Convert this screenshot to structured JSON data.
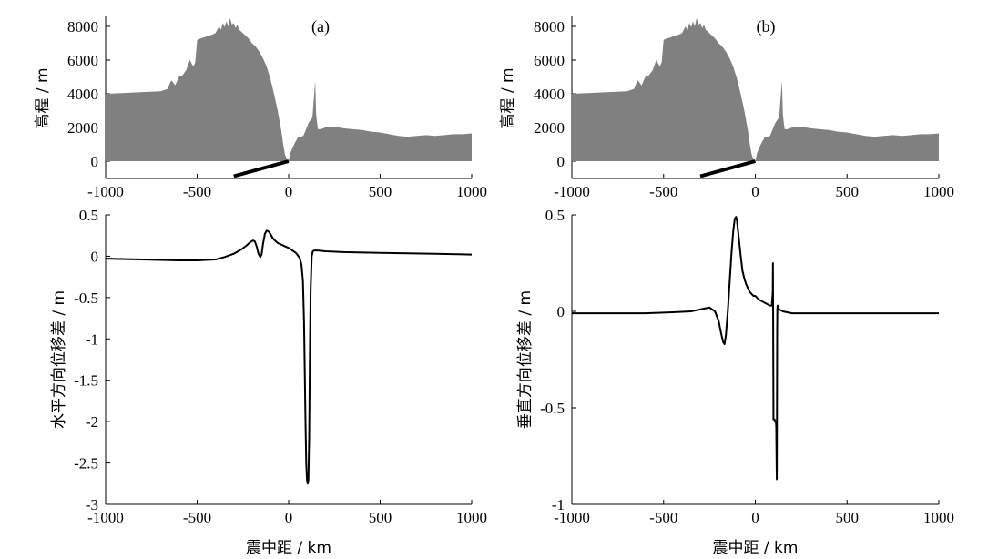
{
  "chart_data": [
    {
      "type": "area",
      "panel_label": "(a)",
      "ylabel": "高程 / m",
      "xlim": [
        -1000,
        1000
      ],
      "ylim": [
        -1000,
        8500
      ],
      "xticks": [
        -1000,
        -500,
        0,
        500,
        1000
      ],
      "yticks": [
        0,
        2000,
        4000,
        6000,
        8000
      ],
      "fill_color": "#808080",
      "grid": false,
      "series": [
        {
          "x": [
            -1000,
            -900,
            -800,
            -700,
            -660,
            -650,
            -640,
            -620,
            -600,
            -580,
            -560,
            -540,
            -520,
            -510,
            -500,
            -480,
            -460,
            -440,
            -420,
            -400,
            -380,
            -370,
            -360,
            -350,
            -340,
            -330,
            -320,
            -310,
            -300,
            -290,
            -280,
            -270,
            -260,
            -240,
            -220,
            -200,
            -180,
            -160,
            -140,
            -120,
            -100,
            -80,
            -60,
            -40,
            -30,
            -20,
            -10,
            0,
            10,
            30,
            50,
            80,
            110,
            130,
            145,
            150,
            155,
            160,
            175,
            200,
            250,
            300,
            350,
            400,
            450,
            500,
            550,
            600,
            650,
            700,
            750,
            800,
            850,
            900,
            950,
            1000
          ],
          "y": [
            4000,
            4050,
            4100,
            4150,
            4300,
            4600,
            4800,
            4500,
            5000,
            5100,
            5400,
            6000,
            5600,
            5900,
            7200,
            7300,
            7350,
            7450,
            7500,
            7600,
            8000,
            7800,
            8200,
            7950,
            8300,
            8000,
            8500,
            8100,
            8200,
            7900,
            8100,
            7800,
            7700,
            7500,
            7300,
            7000,
            6800,
            6500,
            6100,
            5600,
            4900,
            4000,
            3000,
            1800,
            1000,
            400,
            100,
            0,
            500,
            1000,
            1400,
            1500,
            2300,
            2600,
            4800,
            2800,
            2300,
            1900,
            1900,
            2000,
            2050,
            1950,
            1900,
            1850,
            1750,
            1700,
            1600,
            1500,
            1450,
            1500,
            1550,
            1500,
            1550,
            1600,
            1600,
            1650
          ]
        }
      ],
      "fault_trace": {
        "x": [
          -300,
          0
        ],
        "y": [
          -1000,
          0
        ]
      }
    },
    {
      "type": "area",
      "panel_label": "(b)",
      "ylabel": "高程 / m",
      "xlim": [
        -1000,
        1000
      ],
      "ylim": [
        -1000,
        8500
      ],
      "xticks": [
        -1000,
        -500,
        0,
        500,
        1000
      ],
      "yticks": [
        0,
        2000,
        4000,
        6000,
        8000
      ],
      "fill_color": "#808080",
      "grid": false,
      "series": [
        {
          "x": [
            -1000,
            -900,
            -800,
            -700,
            -660,
            -650,
            -640,
            -620,
            -600,
            -580,
            -560,
            -540,
            -520,
            -510,
            -500,
            -480,
            -460,
            -440,
            -420,
            -400,
            -380,
            -370,
            -360,
            -350,
            -340,
            -330,
            -320,
            -310,
            -300,
            -290,
            -280,
            -270,
            -260,
            -240,
            -220,
            -200,
            -180,
            -160,
            -140,
            -120,
            -100,
            -80,
            -60,
            -40,
            -30,
            -20,
            -10,
            0,
            10,
            30,
            50,
            80,
            110,
            130,
            145,
            150,
            155,
            160,
            175,
            200,
            250,
            300,
            350,
            400,
            450,
            500,
            550,
            600,
            650,
            700,
            750,
            800,
            850,
            900,
            950,
            1000
          ],
          "y": [
            4000,
            4050,
            4100,
            4150,
            4300,
            4600,
            4800,
            4500,
            5000,
            5100,
            5400,
            6000,
            5600,
            5900,
            7200,
            7300,
            7350,
            7450,
            7500,
            7600,
            8000,
            7800,
            8200,
            7950,
            8300,
            8000,
            8500,
            8100,
            8200,
            7900,
            8100,
            7800,
            7700,
            7500,
            7300,
            7000,
            6800,
            6500,
            6100,
            5600,
            4900,
            4000,
            3000,
            1800,
            1000,
            400,
            100,
            0,
            500,
            1000,
            1400,
            1500,
            2300,
            2600,
            4800,
            2800,
            2300,
            1900,
            1900,
            2000,
            2050,
            1950,
            1900,
            1850,
            1750,
            1700,
            1600,
            1500,
            1450,
            1500,
            1550,
            1500,
            1550,
            1600,
            1600,
            1650
          ]
        }
      ],
      "fault_trace": {
        "x": [
          -300,
          0
        ],
        "y": [
          -1000,
          0
        ]
      }
    },
    {
      "type": "line",
      "xlabel": "震中距 / km",
      "ylabel": "水平方向位移差 / m",
      "xlim": [
        -1000,
        1000
      ],
      "ylim": [
        -3,
        0.5
      ],
      "xticks": [
        -1000,
        -500,
        0,
        500,
        1000
      ],
      "yticks": [
        0.5,
        0,
        -0.5,
        -1,
        -1.5,
        -2,
        -2.5,
        -3
      ],
      "ytick_labels": [
        "0.5",
        "0",
        "-0.5",
        "-1",
        "-1.5",
        "-2",
        "-2.5",
        "-3"
      ],
      "grid": false,
      "series": [
        {
          "x": [
            -1000,
            -800,
            -600,
            -500,
            -400,
            -350,
            -300,
            -260,
            -230,
            -210,
            -195,
            -185,
            -175,
            -165,
            -155,
            -148,
            -140,
            -130,
            -120,
            -110,
            -100,
            -90,
            -80,
            -60,
            -40,
            -20,
            0,
            20,
            40,
            60,
            70,
            78,
            84,
            88,
            92,
            96,
            100,
            104,
            108,
            112,
            116,
            120,
            126,
            132,
            140,
            160,
            200,
            300,
            500,
            800,
            1000
          ],
          "y": [
            -0.03,
            -0.04,
            -0.05,
            -0.05,
            -0.04,
            -0.01,
            0.03,
            0.08,
            0.13,
            0.17,
            0.19,
            0.18,
            0.12,
            0.03,
            -0.01,
            0.02,
            0.15,
            0.27,
            0.31,
            0.3,
            0.27,
            0.23,
            0.2,
            0.16,
            0.14,
            0.12,
            0.1,
            0.07,
            0.04,
            -0.02,
            -0.1,
            -0.3,
            -0.8,
            -1.4,
            -2.0,
            -2.5,
            -2.7,
            -2.75,
            -2.7,
            -2.2,
            -1.2,
            -0.4,
            0.0,
            0.06,
            0.07,
            0.07,
            0.06,
            0.05,
            0.04,
            0.03,
            0.02
          ]
        }
      ]
    },
    {
      "type": "line",
      "xlabel": "震中距 / km",
      "ylabel": "垂直方向位移差 / m",
      "xlim": [
        -1000,
        1000
      ],
      "ylim": [
        -1,
        0.5
      ],
      "xticks": [
        -1000,
        -500,
        0,
        500,
        1000
      ],
      "yticks": [
        0.5,
        0,
        -0.5,
        -1
      ],
      "ytick_labels": [
        "0.5",
        "0",
        "-0.5",
        "-1"
      ],
      "grid": false,
      "series": [
        {
          "x": [
            -1000,
            -800,
            -600,
            -450,
            -350,
            -300,
            -250,
            -220,
            -200,
            -185,
            -175,
            -168,
            -160,
            -150,
            -140,
            -130,
            -120,
            -112,
            -105,
            -100,
            -90,
            -80,
            -70,
            -60,
            -50,
            -40,
            -30,
            -20,
            -10,
            0,
            20,
            40,
            60,
            80,
            90,
            95,
            96,
            97,
            98,
            99,
            100,
            101,
            105,
            108,
            110,
            112,
            114,
            116,
            117,
            118,
            119,
            120,
            122,
            125,
            130,
            150,
            200,
            300,
            500,
            800,
            1000
          ],
          "y": [
            -0.01,
            -0.01,
            -0.01,
            -0.005,
            0.0,
            0.01,
            0.02,
            0.0,
            -0.05,
            -0.12,
            -0.16,
            -0.17,
            -0.12,
            0.0,
            0.15,
            0.3,
            0.42,
            0.48,
            0.49,
            0.47,
            0.38,
            0.29,
            0.21,
            0.17,
            0.14,
            0.12,
            0.1,
            0.09,
            0.08,
            0.08,
            0.06,
            0.05,
            0.04,
            0.03,
            0.03,
            0.1,
            0.25,
            0.0,
            -0.3,
            -0.56,
            -0.56,
            -0.56,
            -0.56,
            -0.57,
            -0.57,
            -0.57,
            -0.6,
            -0.8,
            -0.87,
            -0.5,
            -0.1,
            0.02,
            0.03,
            0.02,
            0.01,
            0.0,
            -0.01,
            -0.01,
            -0.01,
            -0.01,
            -0.01
          ]
        }
      ]
    }
  ]
}
